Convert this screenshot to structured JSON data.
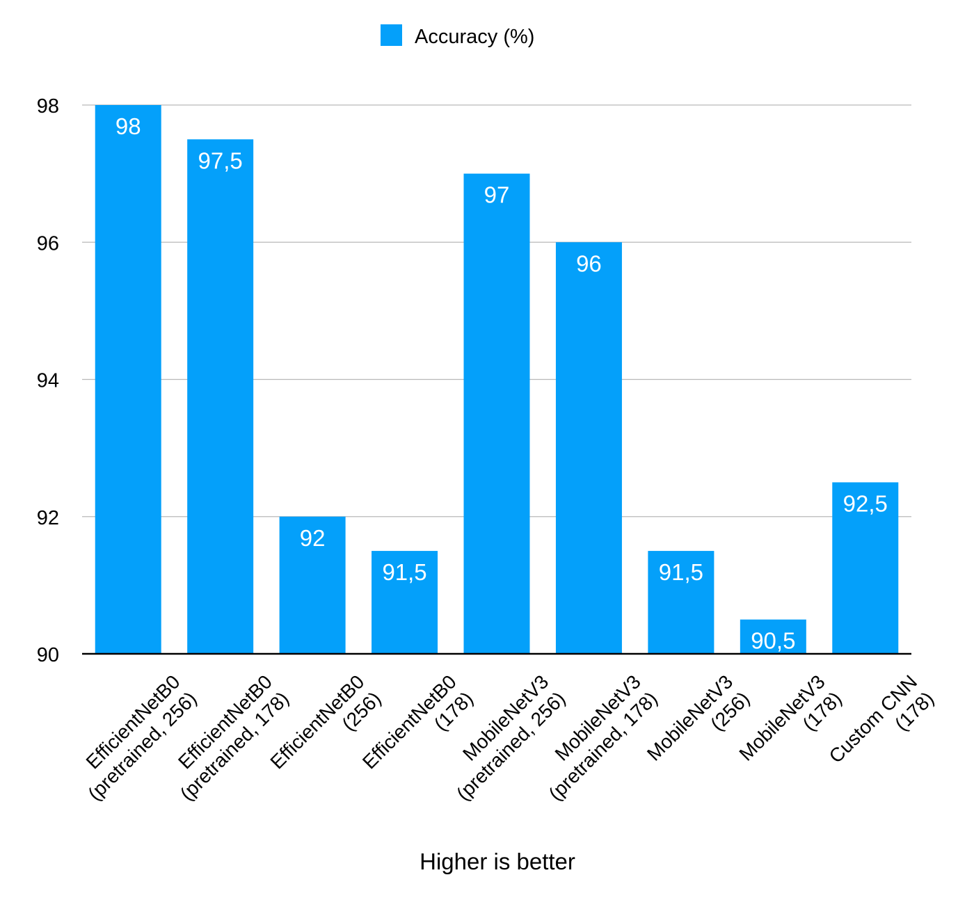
{
  "chart_data": {
    "type": "bar",
    "categories": [
      "EfficientNetB0 (pretrained, 256)",
      "EfficientNetB0 (pretrained, 178)",
      "EfficientNetB0 (256)",
      "EfficientNetB0 (178)",
      "MobileNetV3 (pretrained, 256)",
      "MobileNetV3 (pretrained, 178)",
      "MobileNetV3 (256)",
      "MobileNetV3 (178)",
      "Custom CNN (178)"
    ],
    "category_lines": [
      [
        "EfficientNetB0",
        "(pretrained, 256)"
      ],
      [
        "EfficientNetB0",
        "(pretrained, 178)"
      ],
      [
        "EfficientNetB0",
        "(256)"
      ],
      [
        "EfficientNetB0",
        "(178)"
      ],
      [
        "MobileNetV3",
        "(pretrained, 256)"
      ],
      [
        "MobileNetV3",
        "(pretrained, 178)"
      ],
      [
        "MobileNetV3",
        "(256)"
      ],
      [
        "MobileNetV3",
        "(178)"
      ],
      [
        "Custom CNN",
        "(178)"
      ]
    ],
    "series": [
      {
        "name": "Accuracy (%)",
        "color": "#04a0fa",
        "values": [
          98,
          97.5,
          92,
          91.5,
          97,
          96,
          91.5,
          90.5,
          92.5
        ],
        "value_labels": [
          "98",
          "97,5",
          "92",
          "91,5",
          "97",
          "96",
          "91,5",
          "90,5",
          "92,5"
        ]
      }
    ],
    "title": "",
    "xlabel": "Higher is better",
    "ylabel": "",
    "ylim": [
      90,
      98
    ],
    "yticks": [
      90,
      92,
      94,
      96,
      98
    ],
    "grid": true,
    "legend": "top-center"
  }
}
